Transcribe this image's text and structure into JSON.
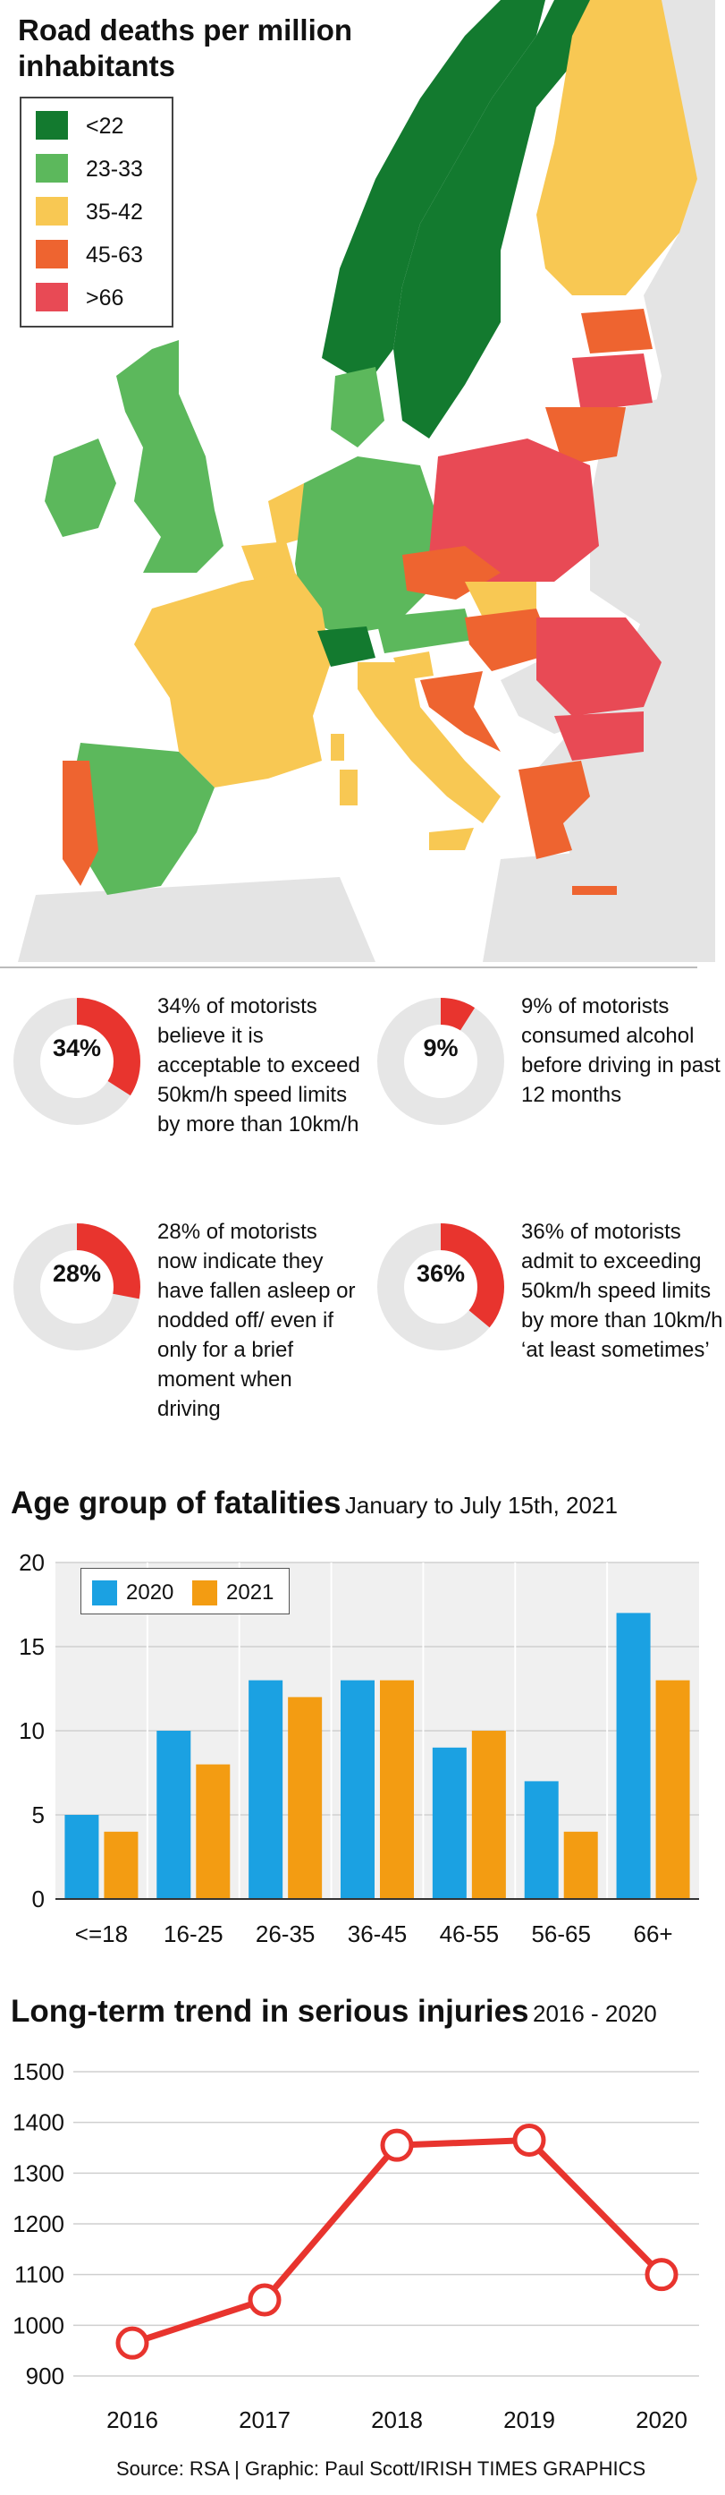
{
  "map": {
    "title_line1": "Road deaths per million",
    "title_line2": "inhabitants",
    "legend": [
      {
        "label": "<22",
        "color": "#137a2f"
      },
      {
        "label": "23-33",
        "color": "#5cb85c"
      },
      {
        "label": "35-42",
        "color": "#f8c853"
      },
      {
        "label": "45-63",
        "color": "#ee6430"
      },
      {
        "label": ">66",
        "color": "#e84a55"
      }
    ]
  },
  "stats": [
    {
      "pct": "34%",
      "fraction": 0.34,
      "text": "34% of motorists believe it is acceptable to exceed 50km/h speed limits by more than 10km/h"
    },
    {
      "pct": "9%",
      "fraction": 0.09,
      "text": "9% of motorists consumed alcohol before driving in past 12 months"
    },
    {
      "pct": "28%",
      "fraction": 0.28,
      "text": "28% of motorists now indicate they have fallen asleep or nodded off/ even if only for a brief moment when driving"
    },
    {
      "pct": "36%",
      "fraction": 0.36,
      "text": "36% of motorists admit to exceeding 50km/h speed limits by more than 10km/h ‘at least sometimes’"
    }
  ],
  "bar_chart": {
    "title": "Age group of fatalities",
    "subtitle": "January to July 15th, 2021"
  },
  "line_chart": {
    "title": "Long-term trend in serious injuries",
    "subtitle": "2016 - 2020"
  },
  "source": "Source: RSA  |  Graphic: Paul Scott/IRISH TIMES GRAPHICS",
  "colors": {
    "series_2020": "#1ba1e2",
    "series_2021": "#f39c12",
    "line": "#e8342e",
    "donut_fill": "#e8342e",
    "donut_bg": "#e6e6e6"
  },
  "chart_data": [
    {
      "type": "bar",
      "categories": [
        "<=18",
        "16-25",
        "26-35",
        "36-45",
        "46-55",
        "56-65",
        "66+"
      ],
      "series": [
        {
          "name": "2020",
          "values": [
            5,
            10,
            13,
            13,
            9,
            7,
            17
          ]
        },
        {
          "name": "2021",
          "values": [
            4,
            8,
            12,
            13,
            10,
            4,
            13
          ]
        }
      ],
      "ylim": [
        0,
        20
      ],
      "yticks": [
        0,
        5,
        10,
        15,
        20
      ],
      "grid": true,
      "legend_position": "top-left"
    },
    {
      "type": "line",
      "x": [
        "2016",
        "2017",
        "2018",
        "2019",
        "2020"
      ],
      "values": [
        965,
        1050,
        1355,
        1365,
        1100
      ],
      "ylim": [
        900,
        1500
      ],
      "yticks": [
        900,
        1000,
        1100,
        1200,
        1300,
        1400,
        1500
      ],
      "grid": true
    }
  ]
}
